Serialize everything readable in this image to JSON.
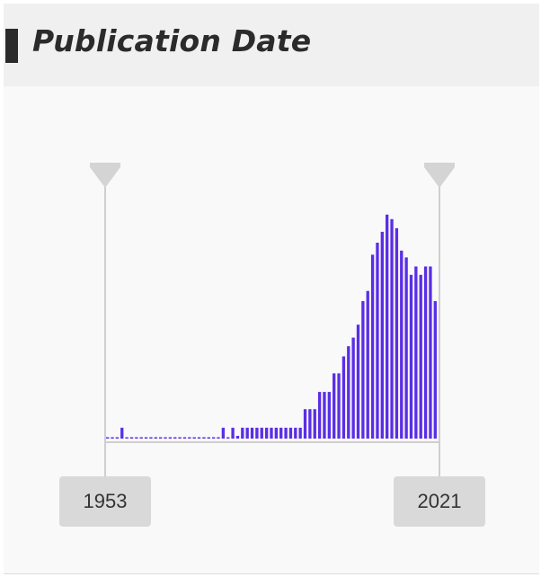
{
  "header": {
    "title": "Publication Date"
  },
  "range": {
    "start_year": "1953",
    "end_year": "2021"
  },
  "colors": {
    "bar": "#5a2ee6",
    "handle": "#d4d4d4",
    "line": "#cfcfcf",
    "header_bg": "#f0f0f0",
    "accent_bar": "#2b2b2b"
  },
  "chart_data": {
    "type": "bar",
    "x": [
      1953,
      1954,
      1955,
      1956,
      1957,
      1958,
      1959,
      1960,
      1961,
      1962,
      1963,
      1964,
      1965,
      1966,
      1967,
      1968,
      1969,
      1970,
      1971,
      1972,
      1973,
      1974,
      1975,
      1976,
      1977,
      1978,
      1979,
      1980,
      1981,
      1982,
      1983,
      1984,
      1985,
      1986,
      1987,
      1988,
      1989,
      1990,
      1991,
      1992,
      1993,
      1994,
      1995,
      1996,
      1997,
      1998,
      1999,
      2000,
      2001,
      2002,
      2003,
      2004,
      2005,
      2006,
      2007,
      2008,
      2009,
      2010,
      2011,
      2012,
      2013,
      2014,
      2015,
      2016,
      2017,
      2018,
      2019,
      2020,
      2021
    ],
    "values": [
      0.6,
      0.6,
      0.6,
      4.8,
      0.6,
      0.6,
      0.6,
      0.6,
      0.6,
      0.6,
      0.6,
      0.6,
      0.6,
      0.6,
      0.6,
      0.6,
      0.6,
      0.6,
      0.6,
      0.6,
      0.6,
      0.6,
      0.6,
      0.6,
      4.8,
      0.6,
      4.8,
      1.2,
      4.8,
      4.8,
      4.8,
      4.8,
      4.8,
      4.8,
      4.8,
      4.8,
      4.8,
      4.8,
      4.8,
      4.8,
      4.8,
      13,
      13,
      13,
      20.6,
      20.6,
      20.6,
      28.8,
      28.8,
      36.3,
      40.8,
      44.6,
      50.3,
      60.7,
      65.2,
      81.2,
      86.5,
      91.3,
      98.9,
      96.9,
      92.9,
      83,
      80,
      72.3,
      76,
      72.3,
      76,
      76,
      60.7
    ],
    "xlabel": "",
    "ylabel": "",
    "xlim": [
      1953,
      2021
    ],
    "ylim": [
      0,
      100
    ],
    "grid": false
  }
}
